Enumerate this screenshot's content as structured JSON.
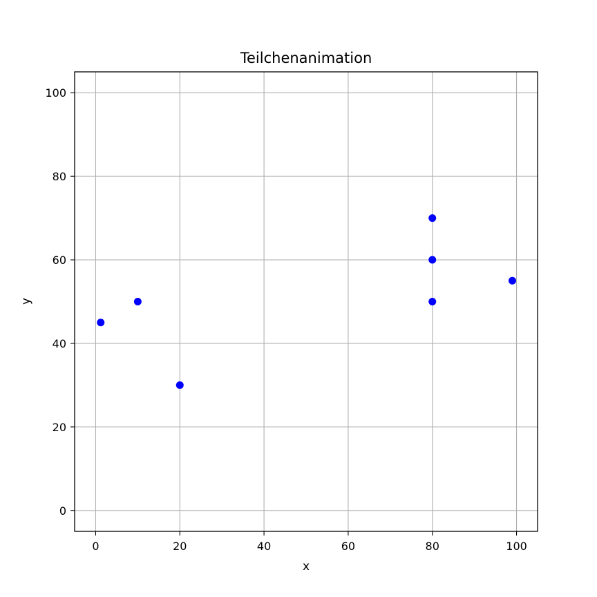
{
  "chart_data": {
    "type": "scatter",
    "title": "Teilchenanimation",
    "xlabel": "x",
    "ylabel": "y",
    "xlim": [
      -5,
      105
    ],
    "ylim": [
      -5,
      105
    ],
    "xticks": [
      0,
      20,
      40,
      60,
      80,
      100
    ],
    "yticks": [
      0,
      20,
      40,
      60,
      80,
      100
    ],
    "grid": true,
    "marker_color": "#0000ff",
    "points": [
      {
        "x": 1.2,
        "y": 45
      },
      {
        "x": 10,
        "y": 50
      },
      {
        "x": 20,
        "y": 30
      },
      {
        "x": 80,
        "y": 70
      },
      {
        "x": 80,
        "y": 60
      },
      {
        "x": 80,
        "y": 50
      },
      {
        "x": 99,
        "y": 55
      }
    ]
  }
}
